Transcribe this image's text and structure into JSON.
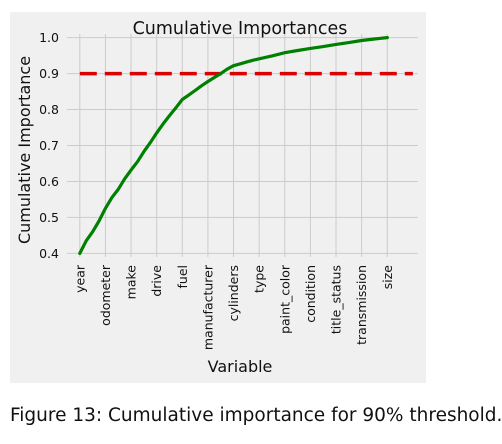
{
  "chart_data": {
    "type": "line",
    "title": "Cumulative Importances",
    "xlabel": "Variable",
    "ylabel": "Cumulative Importance",
    "categories": [
      "year",
      "odometer",
      "make",
      "drive",
      "fuel",
      "manufacturer",
      "cylinders",
      "type",
      "paint_color",
      "condition",
      "title_status",
      "transmission",
      "size"
    ],
    "series": [
      {
        "x": [
          0,
          0.25,
          0.5,
          0.75,
          1,
          1.25,
          1.5,
          1.75,
          2,
          2.25,
          2.5,
          2.75,
          3,
          3.25,
          3.5,
          3.75,
          4,
          4.25,
          4.5,
          4.75,
          5,
          5.25,
          5.5,
          5.75,
          6,
          6.25,
          6.5,
          6.75,
          7,
          7.5,
          8,
          8.5,
          9,
          9.5,
          10,
          10.5,
          11,
          11.5,
          12
        ],
        "y": [
          0.4,
          0.435,
          0.46,
          0.49,
          0.525,
          0.555,
          0.578,
          0.607,
          0.632,
          0.655,
          0.683,
          0.708,
          0.735,
          0.76,
          0.783,
          0.805,
          0.828,
          0.84,
          0.853,
          0.866,
          0.878,
          0.889,
          0.9,
          0.912,
          0.922,
          0.927,
          0.932,
          0.937,
          0.941,
          0.949,
          0.958,
          0.964,
          0.97,
          0.975,
          0.981,
          0.986,
          0.992,
          0.996,
          1.0
        ],
        "color": "#008000"
      }
    ],
    "threshold": {
      "value": 0.9,
      "color": "#dd0000",
      "style": "dashed"
    },
    "yticks": [
      0.4,
      0.5,
      0.6,
      0.7,
      0.8,
      0.9,
      1.0
    ],
    "ytick_labels": [
      "0.4",
      "0.5",
      "0.6",
      "0.7",
      "0.8",
      "0.9",
      "1.0"
    ],
    "ylim": [
      0.39,
      1.01
    ],
    "xlim": [
      -0.5,
      13.2
    ],
    "grid": true,
    "background": "#f0f0f0",
    "grid_color": "#cbcbcb"
  },
  "caption": "Figure 13: Cumulative importance for 90% threshold."
}
